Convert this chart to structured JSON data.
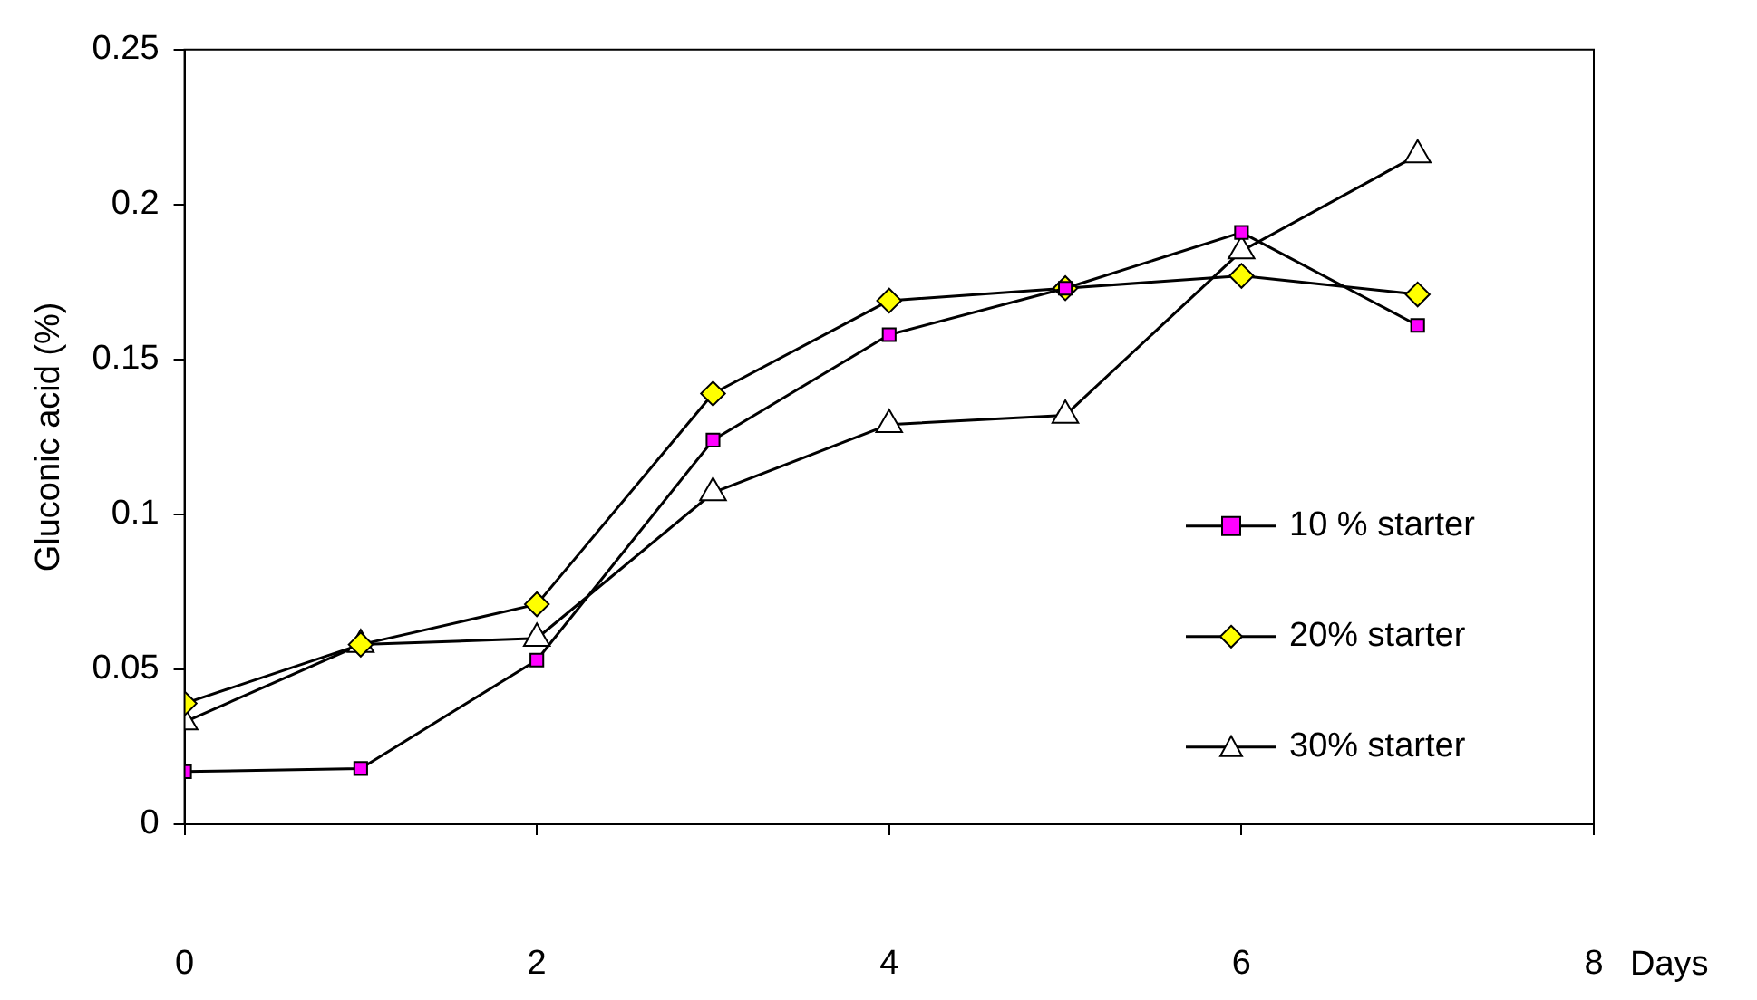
{
  "chart_data": {
    "type": "line",
    "xlabel": "Days",
    "ylabel": "Gluconic acid (%)",
    "x": [
      0,
      1,
      2,
      3,
      4,
      5,
      6,
      7
    ],
    "xlim": [
      0,
      8
    ],
    "xticks": [
      0,
      2,
      4,
      6,
      8
    ],
    "ylim": [
      0,
      0.25
    ],
    "yticks": [
      0,
      0.05,
      0.1,
      0.15,
      0.2,
      0.25
    ],
    "grid": false,
    "legend": "right",
    "line_style": "solid",
    "series": [
      {
        "name": "10 % starter",
        "color": "#ff00ff",
        "marker": "square",
        "values": [
          0.017,
          0.018,
          0.053,
          0.124,
          0.158,
          0.173,
          0.191,
          0.161
        ]
      },
      {
        "name": "20% starter",
        "color": "#ffff00",
        "marker": "diamond",
        "values": [
          0.039,
          0.058,
          0.071,
          0.139,
          0.169,
          0.173,
          0.177,
          0.171
        ]
      },
      {
        "name": "30% starter",
        "color": "#ffffff",
        "marker": "triangle",
        "values": [
          0.033,
          0.058,
          0.06,
          0.107,
          0.129,
          0.132,
          0.185,
          0.216
        ]
      }
    ]
  }
}
